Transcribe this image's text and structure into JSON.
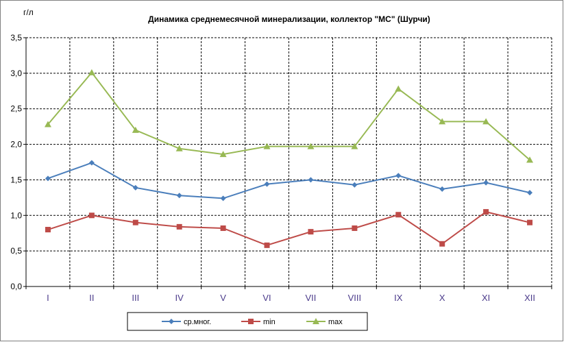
{
  "chart_data": {
    "type": "line",
    "title": "Динамика среднемесячной минерализации, коллектор \"МС\" (Шурчи)",
    "ylabel": "г/л",
    "xlabel": "",
    "categories": [
      "I",
      "II",
      "III",
      "IV",
      "V",
      "VI",
      "VII",
      "VIII",
      "IX",
      "X",
      "XI",
      "XII"
    ],
    "ylim": [
      0,
      3.5
    ],
    "yticks": [
      "0,0",
      "0,5",
      "1,0",
      "1,5",
      "2,0",
      "2,5",
      "3,0",
      "3,5"
    ],
    "ytick_values": [
      0,
      0.5,
      1.0,
      1.5,
      2.0,
      2.5,
      3.0,
      3.5
    ],
    "grid": true,
    "legend_position": "bottom",
    "series": [
      {
        "name": "ср.мног.",
        "color": "#4a7ebb",
        "marker": "diamond",
        "values": [
          1.52,
          1.74,
          1.39,
          1.28,
          1.24,
          1.44,
          1.5,
          1.43,
          1.56,
          1.37,
          1.46,
          1.32
        ]
      },
      {
        "name": "min",
        "color": "#be4b48",
        "marker": "square",
        "values": [
          0.8,
          1.0,
          0.9,
          0.84,
          0.82,
          0.58,
          0.77,
          0.82,
          1.01,
          0.6,
          1.05,
          0.9
        ]
      },
      {
        "name": "max",
        "color": "#98b954",
        "marker": "triangle",
        "values": [
          2.28,
          3.01,
          2.2,
          1.94,
          1.86,
          1.97,
          1.97,
          1.97,
          2.78,
          2.32,
          2.32,
          1.78
        ]
      }
    ]
  }
}
